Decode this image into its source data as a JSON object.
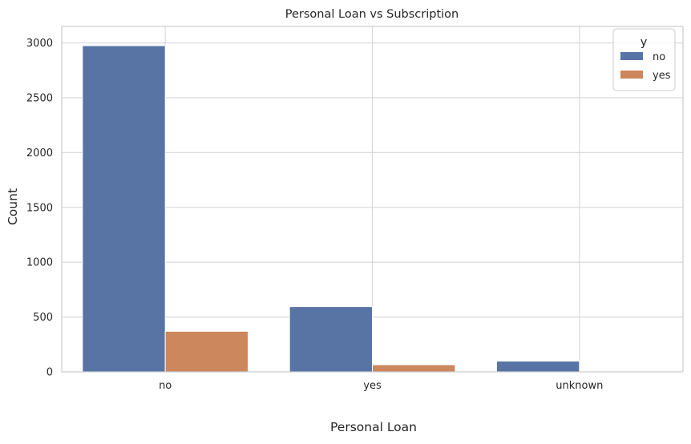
{
  "chart_data": {
    "type": "bar",
    "title": "Personal Loan vs Subscription",
    "xlabel": "Personal Loan",
    "ylabel": "Count",
    "categories": [
      "no",
      "yes",
      "unknown"
    ],
    "series": [
      {
        "name": "no",
        "values": [
          2975,
          595,
          98
        ],
        "color": "#5874a5"
      },
      {
        "name": "yes",
        "values": [
          370,
          65,
          3
        ],
        "color": "#cc875d"
      }
    ],
    "ylim": [
      0,
      3150
    ],
    "yticks": [
      0,
      500,
      1000,
      1500,
      2000,
      2500,
      3000
    ],
    "grid": true,
    "legend": {
      "title": "y",
      "placement": "top-right"
    },
    "colors": {
      "grid": "#d6d6d6",
      "axes_edge": "#cccccc"
    }
  }
}
